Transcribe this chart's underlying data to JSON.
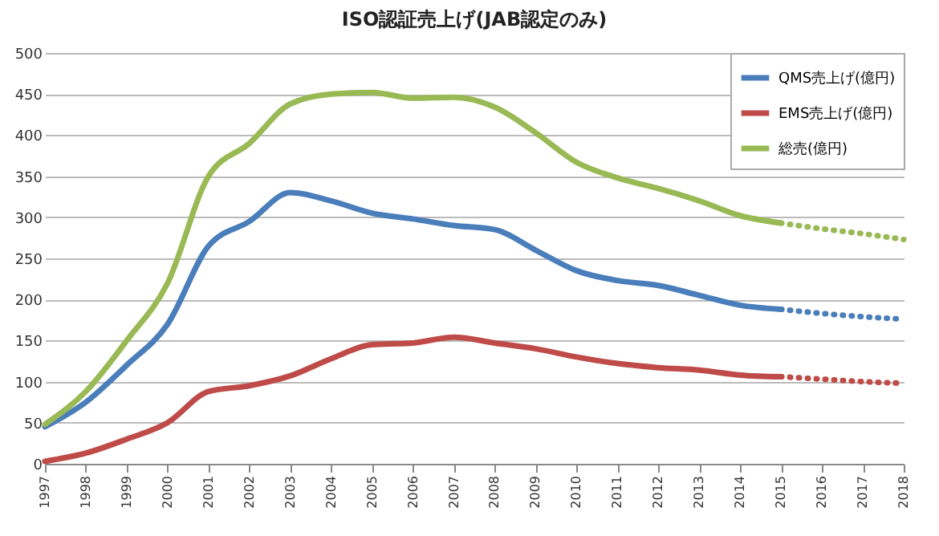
{
  "chart_data": {
    "type": "line",
    "title": "ISO認証売上げ(JAB認定のみ)",
    "categories": [
      "1997",
      "1998",
      "1999",
      "2000",
      "2001",
      "2002",
      "2003",
      "2004",
      "2005",
      "2006",
      "2007",
      "2008",
      "2009",
      "2010",
      "2011",
      "2012",
      "2013",
      "2014",
      "2015",
      "2016",
      "2017",
      "2018"
    ],
    "series": [
      {
        "name": "QMS売上げ(億円)",
        "color": "#4a7ebb",
        "values": [
          45,
          75,
          120,
          170,
          265,
          295,
          330,
          320,
          305,
          298,
          290,
          285,
          260,
          235,
          223,
          217,
          205,
          193,
          188,
          null,
          null,
          null
        ]
      },
      {
        "name": "EMS売上げ(億円)",
        "color": "#be4b48",
        "values": [
          3,
          13,
          30,
          50,
          88,
          95,
          107,
          128,
          145,
          147,
          154,
          147,
          140,
          130,
          122,
          117,
          114,
          108,
          106,
          null,
          null,
          null
        ]
      },
      {
        "name": "総売(億円)",
        "color": "#98b954",
        "values": [
          48,
          88,
          150,
          220,
          350,
          390,
          438,
          450,
          452,
          445,
          446,
          434,
          403,
          367,
          348,
          335,
          320,
          302,
          293,
          null,
          null,
          null
        ]
      },
      {
        "color": "#4a7ebb",
        "line_style": "dotted",
        "values": [
          null,
          null,
          null,
          null,
          null,
          null,
          null,
          null,
          null,
          null,
          null,
          null,
          null,
          null,
          null,
          null,
          null,
          null,
          188,
          183,
          179,
          176
        ]
      },
      {
        "color": "#be4b48",
        "line_style": "dotted",
        "values": [
          null,
          null,
          null,
          null,
          null,
          null,
          null,
          null,
          null,
          null,
          null,
          null,
          null,
          null,
          null,
          null,
          null,
          null,
          106,
          103,
          100,
          98
        ]
      },
      {
        "color": "#98b954",
        "line_style": "dotted",
        "values": [
          null,
          null,
          null,
          null,
          null,
          null,
          null,
          null,
          null,
          null,
          null,
          null,
          null,
          null,
          null,
          null,
          null,
          null,
          293,
          286,
          280,
          273
        ]
      }
    ],
    "ylim": [
      0,
      500
    ],
    "yticks": [
      0,
      50,
      100,
      150,
      200,
      250,
      300,
      350,
      400,
      450,
      500
    ],
    "grid": "y",
    "legend": "top right",
    "line_style": "solid",
    "marker": "none"
  }
}
